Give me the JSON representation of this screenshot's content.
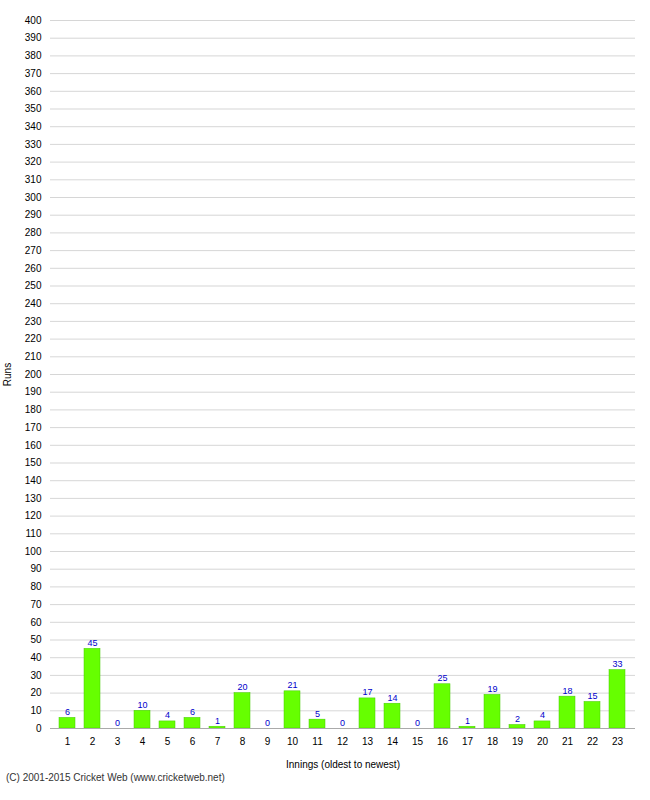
{
  "chart_data": {
    "type": "bar",
    "categories": [
      "1",
      "2",
      "3",
      "4",
      "5",
      "6",
      "7",
      "8",
      "9",
      "10",
      "11",
      "12",
      "13",
      "14",
      "15",
      "16",
      "17",
      "18",
      "19",
      "20",
      "21",
      "22",
      "23"
    ],
    "values": [
      6,
      45,
      0,
      10,
      4,
      6,
      1,
      20,
      0,
      21,
      5,
      0,
      17,
      14,
      0,
      25,
      1,
      19,
      2,
      4,
      18,
      15,
      33
    ],
    "color": "#66ff00",
    "xlabel": "Innings (oldest to newest)",
    "ylabel": "Runs",
    "ylim": [
      0,
      400
    ],
    "yticks": [
      0,
      10,
      20,
      30,
      40,
      50,
      60,
      70,
      80,
      90,
      100,
      110,
      120,
      130,
      140,
      150,
      160,
      170,
      180,
      190,
      200,
      210,
      220,
      230,
      240,
      250,
      260,
      270,
      280,
      290,
      300,
      310,
      320,
      330,
      340,
      350,
      360,
      370,
      380,
      390,
      400
    ],
    "grid": true,
    "data_labels": true,
    "footer": "(C) 2001-2015 Cricket Web (www.cricketweb.net)"
  }
}
